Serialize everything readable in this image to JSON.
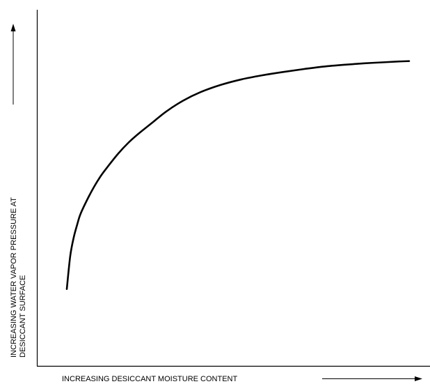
{
  "chart_data": {
    "type": "line",
    "title": "",
    "xlabel": "INCREASING DESICCANT MOISTURE CONTENT",
    "ylabel_line1": "INCREASING WATER VAPOR PRESSURE AT",
    "ylabel_line2": "DESICCANT SURFACE",
    "xlim": [
      0,
      100
    ],
    "ylim": [
      0,
      100
    ],
    "grid": false,
    "ticks": false,
    "series": [
      {
        "x": [
          0,
          1,
          2,
          3,
          4,
          6,
          8,
          10,
          12,
          15,
          18,
          21,
          25,
          29,
          34,
          39,
          45,
          51,
          57,
          63,
          69,
          75,
          81,
          87,
          93,
          97,
          100
        ],
        "y": [
          21,
          30,
          35,
          38.5,
          41.5,
          45.5,
          49,
          52,
          54.5,
          58,
          61,
          63.5,
          66.5,
          69.5,
          72.5,
          74.8,
          76.8,
          78.3,
          79.4,
          80.3,
          81.1,
          81.8,
          82.3,
          82.7,
          83.0,
          83.2,
          83.3
        ]
      }
    ]
  }
}
